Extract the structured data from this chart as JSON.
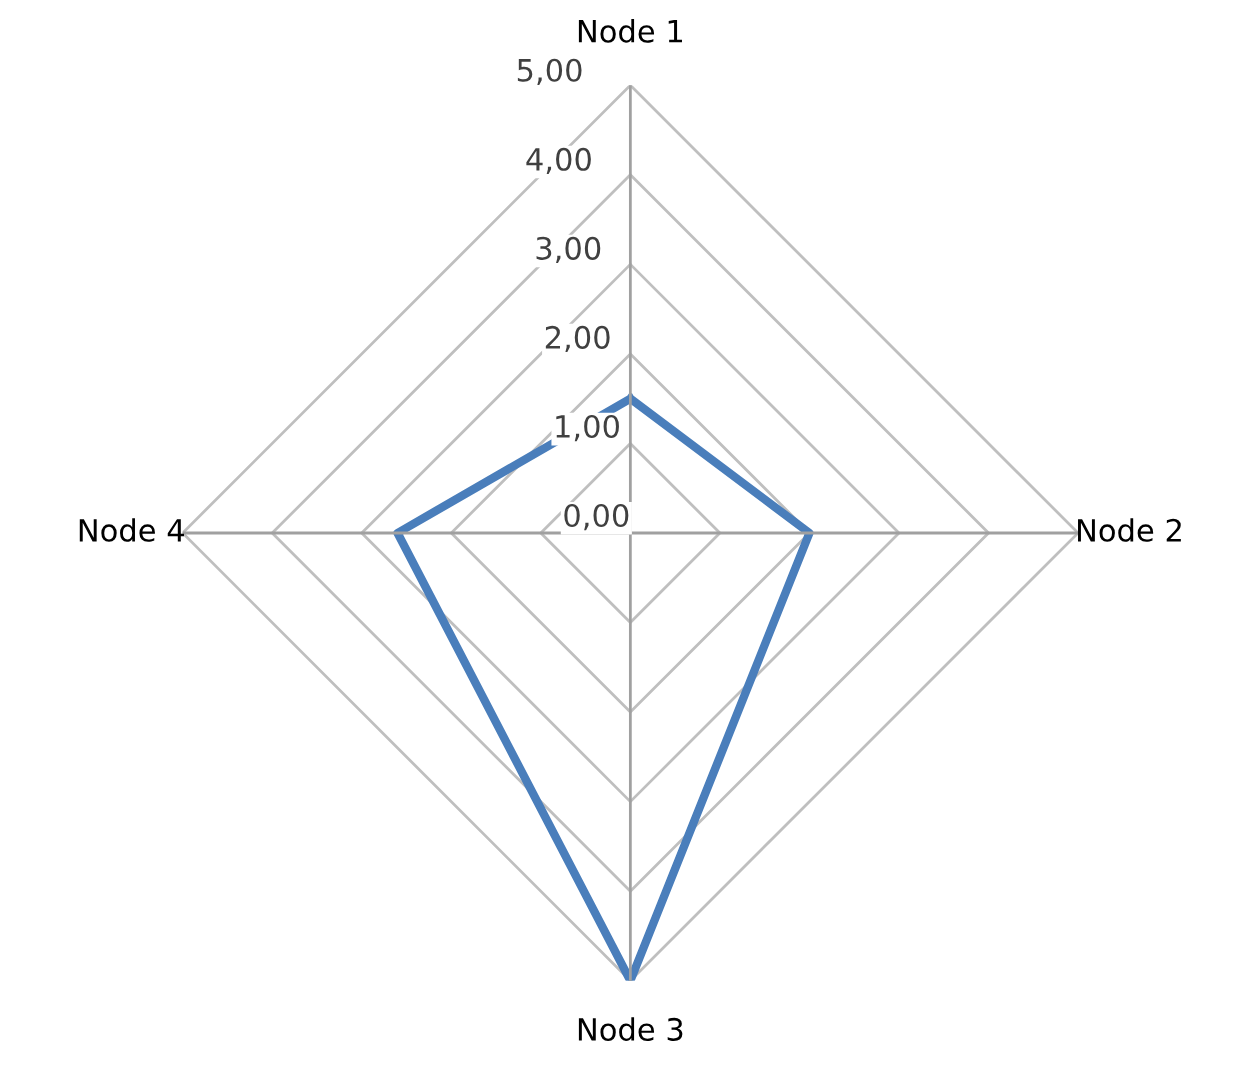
{
  "chart_data": {
    "type": "radar",
    "categories": [
      "Node 1",
      "Node 2",
      "Node 3",
      "Node 4"
    ],
    "series": [
      {
        "color": "#4a7ebb",
        "values": [
          1.5,
          2.0,
          5.0,
          2.6
        ]
      }
    ],
    "ylim": [
      0,
      5
    ],
    "yticks": [
      {
        "value": 0,
        "label": "0,00"
      },
      {
        "value": 1,
        "label": "1,00"
      },
      {
        "value": 2,
        "label": "2,00"
      },
      {
        "value": 3,
        "label": "3,00"
      },
      {
        "value": 4,
        "label": "4,00"
      },
      {
        "value": 5,
        "label": "5,00"
      }
    ],
    "grid": true
  }
}
